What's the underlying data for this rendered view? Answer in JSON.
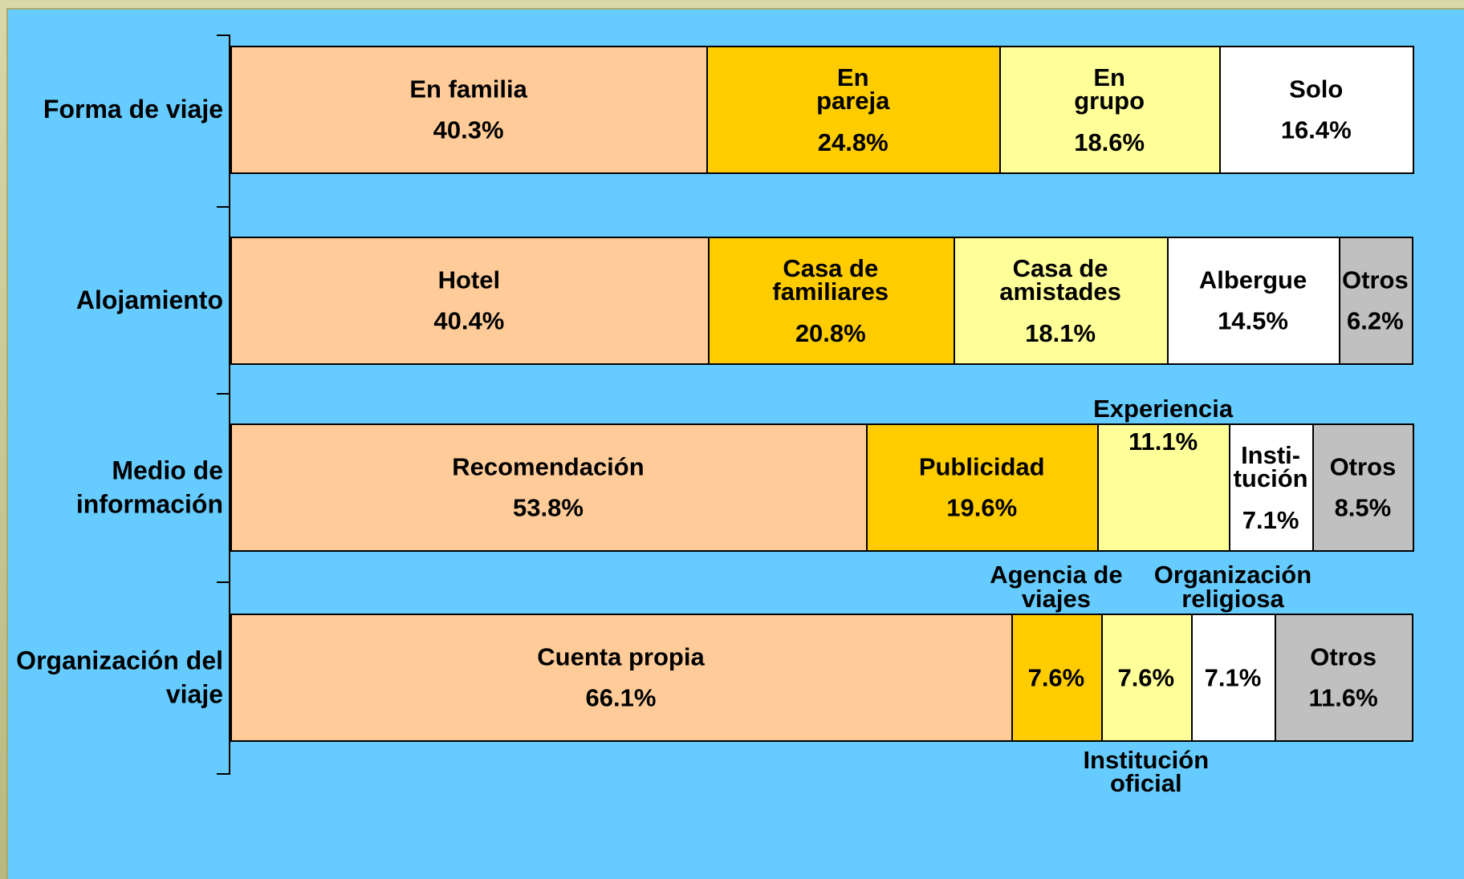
{
  "chart_data": {
    "type": "bar",
    "stacked": true,
    "orientation": "horizontal",
    "xlim": [
      0,
      100
    ],
    "rows": [
      {
        "name": "Forma de viaje",
        "segments": [
          {
            "name": "En familia",
            "value": 40.3,
            "value_label": "40.3%",
            "color": "#ffcc99"
          },
          {
            "name": "En pareja",
            "value": 24.8,
            "value_label": "24.8%",
            "color": "#ffcc00"
          },
          {
            "name": "En grupo",
            "value": 18.6,
            "value_label": "18.6%",
            "color": "#ffff99"
          },
          {
            "name": "Solo",
            "value": 16.4,
            "value_label": "16.4%",
            "color": "#ffffff"
          }
        ]
      },
      {
        "name": "Alojamiento",
        "segments": [
          {
            "name": "Hotel",
            "value": 40.4,
            "value_label": "40.4%",
            "color": "#ffcc99"
          },
          {
            "name": "Casa de familiares",
            "value": 20.8,
            "value_label": "20.8%",
            "color": "#ffcc00"
          },
          {
            "name": "Casa de amistades",
            "value": 18.1,
            "value_label": "18.1%",
            "color": "#ffff99"
          },
          {
            "name": "Albergue",
            "value": 14.5,
            "value_label": "14.5%",
            "color": "#ffffff"
          },
          {
            "name": "Otros",
            "value": 6.2,
            "value_label": "6.2%",
            "color": "#c0c0c0"
          }
        ]
      },
      {
        "name": "Medio de información",
        "segments": [
          {
            "name": "Recomendación",
            "value": 53.8,
            "value_label": "53.8%",
            "color": "#ffcc99"
          },
          {
            "name": "Publicidad",
            "value": 19.6,
            "value_label": "19.6%",
            "color": "#ffcc00"
          },
          {
            "name": "Experiencia",
            "value": 11.1,
            "value_label": "11.1%",
            "color": "#ffff99"
          },
          {
            "name": "Insti-tución",
            "value": 7.1,
            "value_label": "7.1%",
            "color": "#ffffff"
          },
          {
            "name": "Otros",
            "value": 8.5,
            "value_label": "8.5%",
            "color": "#c0c0c0"
          }
        ]
      },
      {
        "name": "Organización del viaje",
        "segments": [
          {
            "name": "Cuenta propia",
            "value": 66.1,
            "value_label": "66.1%",
            "color": "#ffcc99"
          },
          {
            "name": "Agencia de viajes",
            "value": 7.6,
            "value_label": "7.6%",
            "color": "#ffcc00"
          },
          {
            "name": "Institución oficial",
            "value": 7.6,
            "value_label": "7.6%",
            "color": "#ffff99"
          },
          {
            "name": "Organización religiosa",
            "value": 7.1,
            "value_label": "7.1%",
            "color": "#ffffff"
          },
          {
            "name": "Otros",
            "value": 11.6,
            "value_label": "11.6%",
            "color": "#c0c0c0"
          }
        ]
      }
    ]
  }
}
